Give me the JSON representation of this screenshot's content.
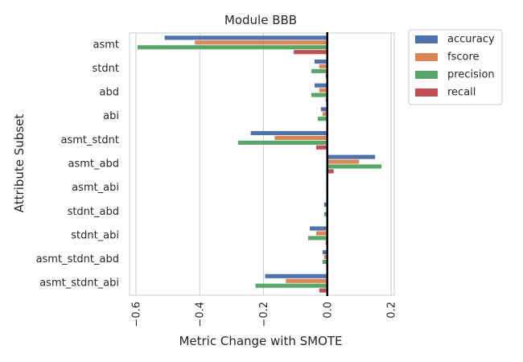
{
  "chart_data": {
    "type": "bar",
    "orientation": "horizontal",
    "title": "Module BBB",
    "xlabel": "Metric Change with SMOTE",
    "ylabel": "Attribute Subset",
    "xlim": [
      -0.62,
      0.21
    ],
    "xticks": [
      -0.6,
      -0.4,
      -0.2,
      0.0,
      0.2
    ],
    "xtick_labels": [
      "−0.6",
      "−0.4",
      "−0.2",
      "0.0",
      "0.2"
    ],
    "grid": true,
    "legend_position": "outside-top-right",
    "categories": [
      "asmt",
      "stdnt",
      "abd",
      "abi",
      "asmt_stdnt",
      "asmt_abd",
      "asmt_abi",
      "stdnt_abd",
      "stdnt_abi",
      "asmt_stdnt_abd",
      "asmt_stdnt_abi"
    ],
    "series": [
      {
        "name": "accuracy",
        "color": "#4c72b0",
        "values": [
          -0.51,
          -0.04,
          -0.04,
          -0.02,
          -0.24,
          0.15,
          0.0,
          -0.01,
          -0.055,
          -0.015,
          -0.195
        ]
      },
      {
        "name": "fscore",
        "color": "#dd8452",
        "values": [
          -0.415,
          -0.025,
          -0.025,
          -0.015,
          -0.165,
          0.1,
          0.0,
          0.0,
          -0.035,
          -0.01,
          -0.13
        ]
      },
      {
        "name": "precision",
        "color": "#55a868",
        "values": [
          -0.595,
          -0.05,
          -0.05,
          -0.03,
          -0.28,
          0.17,
          0.0,
          -0.01,
          -0.06,
          -0.015,
          -0.225
        ]
      },
      {
        "name": "recall",
        "color": "#c44e52",
        "values": [
          -0.105,
          -0.005,
          -0.005,
          -0.003,
          -0.035,
          0.02,
          0.0,
          0.0,
          -0.005,
          -0.003,
          -0.025
        ]
      }
    ]
  }
}
